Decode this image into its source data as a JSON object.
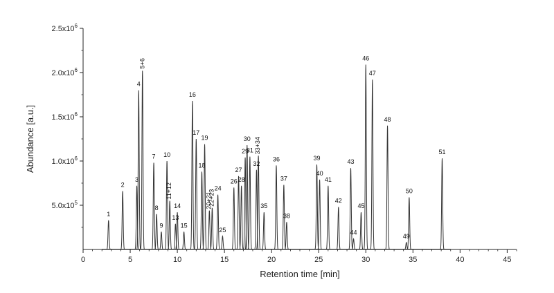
{
  "chart_data": {
    "type": "line",
    "title": "",
    "xlabel": "Retention time [min]",
    "ylabel": "Abundance [a.u.]",
    "xlim": [
      0,
      46
    ],
    "ylim": [
      0,
      2500000
    ],
    "x_ticks": [
      0,
      5,
      10,
      15,
      20,
      25,
      30,
      35,
      40,
      45
    ],
    "y_ticks": [
      {
        "value": 500000,
        "mantissa": "5.0x10",
        "exp": "5"
      },
      {
        "value": 1000000,
        "mantissa": "1.0x10",
        "exp": "6"
      },
      {
        "value": 1500000,
        "mantissa": "1.5x10",
        "exp": "6"
      },
      {
        "value": 2000000,
        "mantissa": "2.0x10",
        "exp": "6"
      },
      {
        "value": 2500000,
        "mantissa": "2.5x10",
        "exp": "6"
      }
    ],
    "grid": false,
    "legend": "none",
    "line_color": "#333333",
    "peaks": [
      {
        "label": "1",
        "rt": 2.7,
        "height": 330000
      },
      {
        "label": "2",
        "rt": 4.2,
        "height": 660000
      },
      {
        "label": "3",
        "rt": 5.7,
        "height": 720000
      },
      {
        "label": "4",
        "rt": 5.9,
        "height": 1800000
      },
      {
        "label": "5+6",
        "rt": 6.3,
        "height": 2020000
      },
      {
        "label": "7",
        "rt": 7.5,
        "height": 980000
      },
      {
        "label": "8",
        "rt": 7.8,
        "height": 400000
      },
      {
        "label": "9",
        "rt": 8.3,
        "height": 200000
      },
      {
        "label": "10",
        "rt": 8.9,
        "height": 1000000
      },
      {
        "label": "11+12",
        "rt": 9.2,
        "height": 550000
      },
      {
        "label": "13",
        "rt": 9.8,
        "height": 290000
      },
      {
        "label": "14",
        "rt": 10.0,
        "height": 420000
      },
      {
        "label": "15",
        "rt": 10.7,
        "height": 200000
      },
      {
        "label": "16",
        "rt": 11.6,
        "height": 1680000
      },
      {
        "label": "17",
        "rt": 12.0,
        "height": 1250000
      },
      {
        "label": "18",
        "rt": 12.6,
        "height": 880000
      },
      {
        "label": "19",
        "rt": 12.9,
        "height": 1190000
      },
      {
        "label": "20+21",
        "rt": 13.4,
        "height": 440000
      },
      {
        "label": "22+23",
        "rt": 13.7,
        "height": 470000
      },
      {
        "label": "24",
        "rt": 14.3,
        "height": 620000
      },
      {
        "label": "25",
        "rt": 14.8,
        "height": 150000
      },
      {
        "label": "26",
        "rt": 16.0,
        "height": 700000
      },
      {
        "label": "27",
        "rt": 16.5,
        "height": 830000
      },
      {
        "label": "28",
        "rt": 16.8,
        "height": 720000
      },
      {
        "label": "29",
        "rt": 17.2,
        "height": 1040000
      },
      {
        "label": "30",
        "rt": 17.4,
        "height": 1180000
      },
      {
        "label": "31",
        "rt": 17.7,
        "height": 1050000
      },
      {
        "label": "32",
        "rt": 18.4,
        "height": 900000
      },
      {
        "label": "33+34",
        "rt": 18.6,
        "height": 1060000
      },
      {
        "label": "35",
        "rt": 19.2,
        "height": 420000
      },
      {
        "label": "36",
        "rt": 20.5,
        "height": 950000
      },
      {
        "label": "37",
        "rt": 21.3,
        "height": 730000
      },
      {
        "label": "38",
        "rt": 21.6,
        "height": 310000
      },
      {
        "label": "39",
        "rt": 24.8,
        "height": 960000
      },
      {
        "label": "40",
        "rt": 25.1,
        "height": 790000
      },
      {
        "label": "41",
        "rt": 26.0,
        "height": 720000
      },
      {
        "label": "42",
        "rt": 27.1,
        "height": 480000
      },
      {
        "label": "43",
        "rt": 28.4,
        "height": 920000
      },
      {
        "label": "44",
        "rt": 28.7,
        "height": 120000
      },
      {
        "label": "45",
        "rt": 29.5,
        "height": 420000
      },
      {
        "label": "46",
        "rt": 30.0,
        "height": 2090000
      },
      {
        "label": "47",
        "rt": 30.7,
        "height": 1920000
      },
      {
        "label": "48",
        "rt": 32.3,
        "height": 1400000
      },
      {
        "label": "49",
        "rt": 34.3,
        "height": 80000
      },
      {
        "label": "50",
        "rt": 34.6,
        "height": 590000
      },
      {
        "label": "51",
        "rt": 38.1,
        "height": 1030000
      }
    ]
  }
}
